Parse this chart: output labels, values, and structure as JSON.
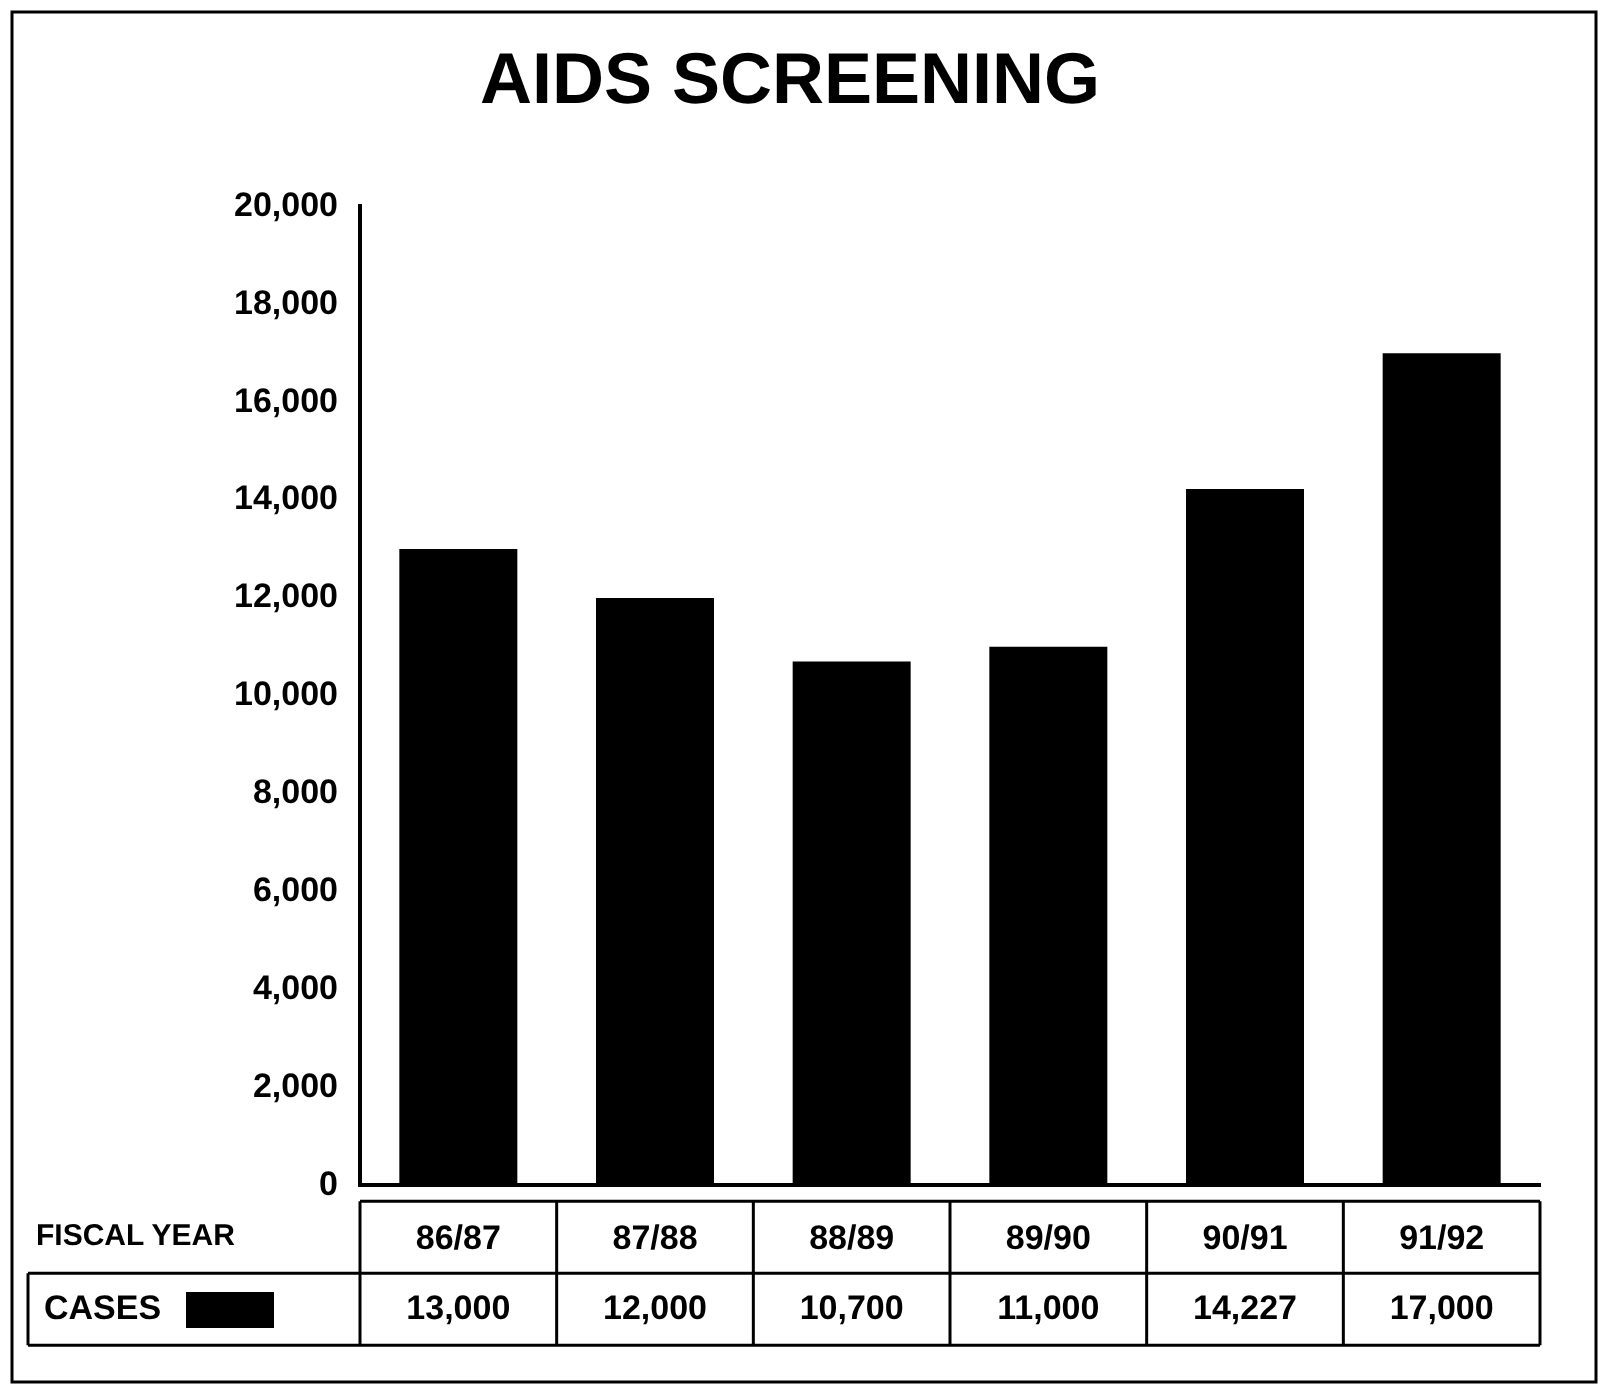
{
  "chart_data": {
    "type": "bar",
    "title": "AIDS SCREENING",
    "xlabel": "FISCAL YEAR",
    "categories": [
      "86/87",
      "87/88",
      "88/89",
      "89/90",
      "90/91",
      "91/92"
    ],
    "series": [
      {
        "name": "CASES",
        "color": "#000000",
        "values": [
          13000,
          12000,
          10700,
          11000,
          14227,
          17000
        ],
        "value_labels": [
          "13,000",
          "12,000",
          "10,700",
          "11,000",
          "14,227",
          "17,000"
        ]
      }
    ],
    "ylim": [
      0,
      20000
    ],
    "yticks": [
      0,
      {
        "value": 2000,
        "label": "2,000"
      },
      {
        "value": 4000,
        "label": "4,000"
      },
      {
        "value": 6000,
        "label": "6,000"
      },
      {
        "value": 8000,
        "label": "8,000"
      },
      {
        "value": 10000,
        "label": "10,000"
      },
      {
        "value": 12000,
        "label": "12,000"
      },
      {
        "value": 14000,
        "label": "14,000"
      },
      {
        "value": 16000,
        "label": "16,000"
      },
      {
        "value": 18000,
        "label": "18,000"
      },
      {
        "value": 20000,
        "label": "20,000"
      }
    ],
    "grid": false,
    "legend": "bottom left"
  }
}
